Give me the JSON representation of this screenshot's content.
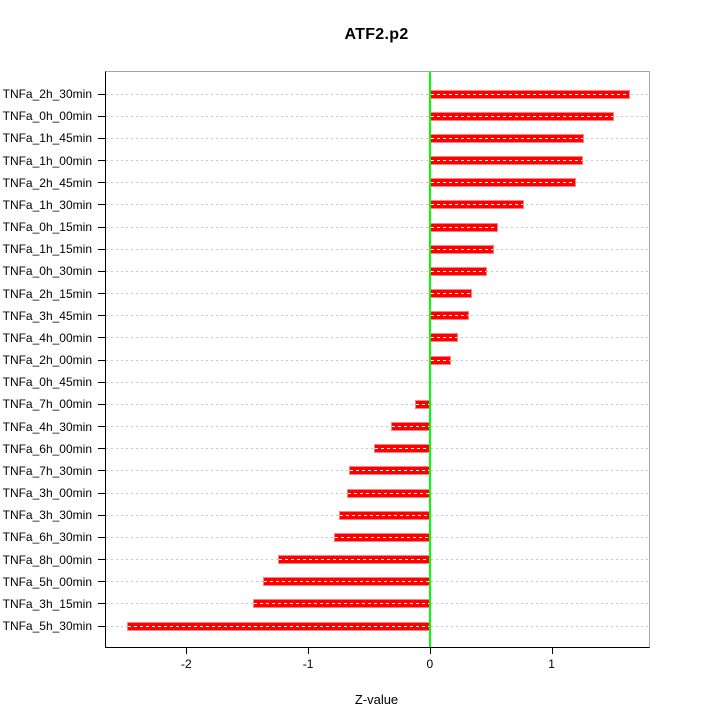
{
  "window": {
    "background": "#ffffff"
  },
  "chart_data": {
    "type": "bar",
    "orientation": "horizontal",
    "title": "ATF2.p2",
    "xlabel": "Z-value",
    "ylabel": "",
    "legend": "none",
    "grid": "dotted horizontal line per category",
    "zero_line_value": 0,
    "xlim": [
      -2.66,
      1.8
    ],
    "x_ticks": [
      "-2",
      "-1",
      "0",
      "1"
    ],
    "x_tick_values": [
      -2,
      -1,
      0,
      1
    ],
    "categories": [
      "TNFa_2h_30min",
      "TNFa_0h_00min",
      "TNFa_1h_45min",
      "TNFa_1h_00min",
      "TNFa_2h_45min",
      "TNFa_1h_30min",
      "TNFa_0h_15min",
      "TNFa_1h_15min",
      "TNFa_0h_30min",
      "TNFa_2h_15min",
      "TNFa_3h_45min",
      "TNFa_4h_00min",
      "TNFa_2h_00min",
      "TNFa_0h_45min",
      "TNFa_7h_00min",
      "TNFa_4h_30min",
      "TNFa_6h_00min",
      "TNFa_7h_30min",
      "TNFa_3h_00min",
      "TNFa_3h_30min",
      "TNFa_6h_30min",
      "TNFa_8h_00min",
      "TNFa_5h_00min",
      "TNFa_3h_15min",
      "TNFa_5h_30min"
    ],
    "values": [
      1.64,
      1.51,
      1.27,
      1.26,
      1.2,
      0.77,
      0.56,
      0.53,
      0.47,
      0.35,
      0.32,
      0.23,
      0.17,
      0.0,
      -0.12,
      -0.32,
      -0.46,
      -0.66,
      -0.68,
      -0.75,
      -0.79,
      -1.25,
      -1.37,
      -1.45,
      -2.49
    ],
    "colors": {
      "bar_fill": "#ff0000",
      "bar_border": "#ff8080",
      "bar_inner_dash": "#ffffff",
      "zero_line": "#00ff00",
      "gridline": "#c9c9c9",
      "axis_text": "#000000",
      "box_top_right": "#a6a6a6",
      "box_bottom_left": "#000000"
    }
  }
}
